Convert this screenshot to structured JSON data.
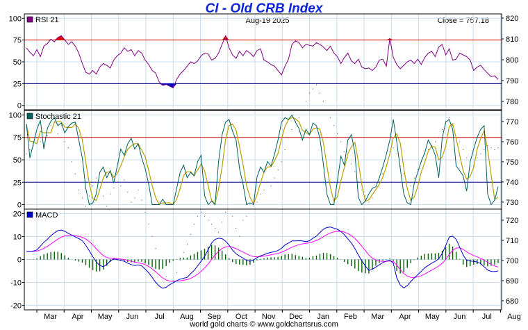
{
  "page": {
    "title": "CI - Old CRB Index",
    "date_label": "Aug-19  2025",
    "close_label": "Close = 757.18",
    "footer": "world gold charts © www.goldchartsrus.com"
  },
  "chart_data": [
    {
      "type": "line",
      "name": "RSI 21",
      "legend": "RSI 21",
      "legend_color": "#800080",
      "ylim": [
        -5,
        105
      ],
      "left_ticks": [
        0,
        25,
        50,
        75,
        100
      ],
      "right_ticks": [
        780,
        790,
        800,
        810,
        820
      ],
      "right_ylim": [
        776,
        822
      ],
      "reference_lines": [
        {
          "value": 75,
          "color": "#d40000"
        },
        {
          "value": 25,
          "color": "#000080"
        }
      ],
      "overbought_fill": "#e00000",
      "oversold_fill": "#0000cc",
      "series_color": "#800080",
      "series_values": [
        66,
        61,
        57,
        64,
        56,
        68,
        71,
        76,
        73,
        78,
        80,
        75,
        70,
        73,
        68,
        60,
        48,
        38,
        36,
        40,
        36,
        44,
        48,
        46,
        43,
        52,
        57,
        60,
        66,
        62,
        64,
        57,
        63,
        60,
        52,
        47,
        40,
        37,
        27,
        23,
        24,
        22,
        20,
        30,
        36,
        40,
        45,
        50,
        48,
        51,
        57,
        60,
        59,
        52,
        54,
        60,
        70,
        80,
        66,
        58,
        54,
        62,
        57,
        63,
        60,
        56,
        63,
        65,
        52,
        50,
        47,
        45,
        40,
        35,
        45,
        53,
        70,
        74,
        72,
        66,
        70,
        69,
        68,
        72,
        70,
        67,
        63,
        68,
        60,
        56,
        48,
        55,
        60,
        51,
        48,
        53,
        44,
        42,
        43,
        40,
        44,
        52,
        53,
        45,
        77,
        55,
        47,
        42,
        46,
        50,
        52,
        48,
        53,
        47,
        55,
        60,
        62,
        56,
        67,
        70,
        58,
        65,
        52,
        53,
        60,
        58,
        56,
        52,
        40,
        44,
        46,
        41,
        37,
        33,
        34,
        30
      ]
    },
    {
      "type": "line",
      "name": "Stochastic 21",
      "legend": "Stochastic 21",
      "legend_color": "#006060",
      "ylim": [
        -5,
        105
      ],
      "left_ticks": [
        0,
        25,
        50,
        75,
        100
      ],
      "right_ticks": [
        730,
        740,
        750,
        760,
        770
      ],
      "right_ylim": [
        726.5,
        775.5
      ],
      "reference_lines": [
        {
          "value": 75,
          "color": "#d40000"
        },
        {
          "value": 25,
          "color": "#000080"
        }
      ],
      "fast_color": "#006060",
      "slow_color": "#b8a000",
      "series_values": [
        90,
        52,
        68,
        84,
        94,
        62,
        85,
        93,
        97,
        88,
        91,
        80,
        87,
        91,
        92,
        72,
        52,
        18,
        0,
        2,
        12,
        36,
        42,
        30,
        38,
        24,
        43,
        62,
        55,
        68,
        74,
        62,
        68,
        52,
        40,
        23,
        0,
        0,
        0,
        6,
        0,
        0,
        0,
        18,
        36,
        44,
        30,
        36,
        32,
        48,
        55,
        10,
        0,
        4,
        0,
        48,
        78,
        92,
        95,
        82,
        72,
        40,
        23,
        0,
        2,
        0,
        31,
        42,
        36,
        48,
        43,
        56,
        72,
        92,
        97,
        95,
        100,
        92,
        85,
        72,
        84,
        78,
        91,
        88,
        74,
        45,
        12,
        0,
        0,
        26,
        54,
        44,
        72,
        78,
        58,
        8,
        0,
        4,
        12,
        18,
        20,
        30,
        42,
        56,
        72,
        95,
        70,
        40,
        12,
        2,
        0,
        24,
        36,
        48,
        58,
        72,
        65,
        55,
        30,
        74,
        92,
        95,
        84,
        43,
        38,
        32,
        15,
        48,
        62,
        75,
        84,
        88,
        12,
        0,
        5,
        20
      ]
    },
    {
      "type": "line",
      "name": "MACD",
      "legend": "MACD",
      "legend_color": "#0000cc",
      "ylim": [
        -22,
        22
      ],
      "left_ticks": [
        -20,
        -10,
        0,
        10,
        20
      ],
      "right_ticks": [
        680,
        690,
        700,
        710,
        720
      ],
      "right_ylim": [
        675.5,
        725.5
      ],
      "macd_color": "#0000cc",
      "signal_color": "#ff00ff",
      "histogram_color": "#006000",
      "macd_values": [
        3.5,
        3.4,
        3.7,
        4.2,
        5.8,
        7.5,
        8.8,
        10.4,
        11.6,
        12.6,
        12.9,
        12.3,
        11.4,
        10.6,
        9.9,
        9.1,
        8.2,
        6.2,
        3.8,
        1.2,
        -1.1,
        -2.6,
        -3.2,
        -2.2,
        -0.6,
        0.2,
        0.0,
        -0.4,
        -0.8,
        -1.6,
        -2.2,
        -2.6,
        -2.4,
        -2.8,
        -4.2,
        -5.8,
        -7.8,
        -10.0,
        -11.6,
        -12.6,
        -12.1,
        -11.0,
        -10.2,
        -9.3,
        -8.6,
        -8.2,
        -7.8,
        -6.2,
        -4.8,
        -2.8,
        -0.8,
        1.4,
        4.2,
        7.2,
        8.8,
        9.3,
        9.1,
        8.0,
        6.3,
        4.1,
        2.5,
        1.5,
        0.6,
        -0.4,
        -0.8,
        -0.2,
        0.8,
        1.6,
        2.1,
        2.7,
        3.1,
        3.4,
        3.9,
        4.9,
        6.3,
        7.2,
        8.1,
        8.1,
        8.2,
        8.1,
        7.8,
        8.2,
        9.3,
        10.2,
        11.8,
        13.2,
        14.0,
        14.2,
        13.7,
        13.2,
        12.2,
        10.8,
        9.0,
        7.2,
        4.8,
        2.0,
        -0.6,
        -2.8,
        -4.8,
        -4.3,
        -3.3,
        -2.3,
        -1.4,
        -0.7,
        -0.3,
        -1.6,
        -8.0,
        -11.2,
        -12.4,
        -11.4,
        -9.6,
        -8.1,
        -6.6,
        -5.2,
        -3.6,
        -2.6,
        -1.6,
        -0.8,
        0.3,
        2.6,
        6.1,
        9.8,
        10.2,
        8.8,
        5.4,
        1.9,
        -0.3,
        -0.7,
        -0.8,
        -1.1,
        -1.8,
        -3.2,
        -4.6,
        -5.2,
        -5.3,
        -5.0
      ]
    }
  ],
  "x_axis": {
    "months": [
      "Mar",
      "Apr",
      "May",
      "Jun",
      "Jul",
      "Aug",
      "Sep",
      "Oct",
      "Nov",
      "Dec",
      "Jan",
      "Feb",
      "Mar",
      "Apr",
      "May",
      "Jun",
      "Jul",
      "Aug"
    ]
  },
  "price_scatter": [
    754,
    756,
    758,
    762,
    760,
    758,
    763,
    768,
    770,
    764,
    768,
    760,
    757,
    750,
    744,
    736,
    732,
    728,
    733,
    738,
    742,
    736,
    733,
    728,
    734,
    737,
    740,
    738,
    741,
    735,
    730,
    732,
    736,
    731,
    724,
    718,
    712,
    706,
    700,
    696,
    692,
    688,
    690,
    694,
    700,
    704,
    708,
    713,
    718,
    722,
    724,
    722,
    720,
    718,
    716,
    714,
    719,
    724,
    726,
    722,
    716,
    712,
    720,
    722,
    726,
    728,
    730,
    734,
    736,
    740,
    738,
    742,
    746,
    750,
    756,
    762,
    766,
    770,
    772,
    776,
    780,
    784,
    786,
    788,
    784,
    780,
    776,
    772,
    768,
    764,
    760,
    755,
    752,
    749,
    745,
    740,
    736,
    733,
    730,
    732,
    736,
    740,
    744,
    748,
    755,
    757,
    754,
    748,
    744,
    740,
    738,
    742,
    746,
    750,
    754,
    756,
    758,
    760,
    762,
    766,
    770,
    772,
    768,
    762,
    760,
    756,
    752,
    750,
    748,
    752,
    754,
    756,
    758,
    757,
    756,
    757
  ]
}
